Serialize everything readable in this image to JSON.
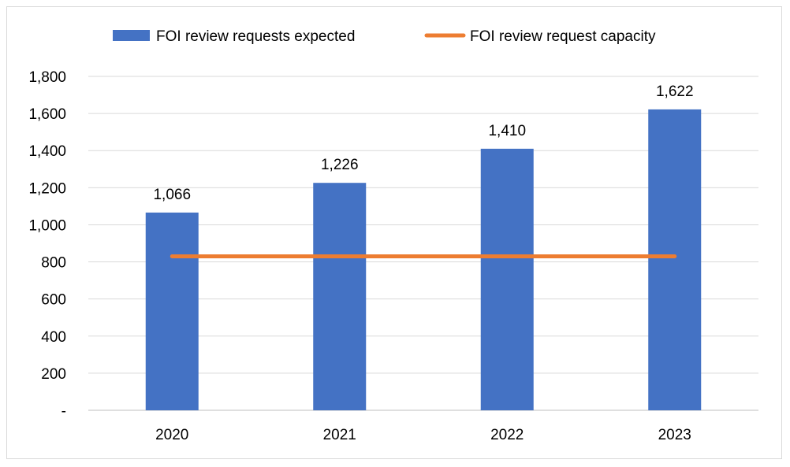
{
  "chart_data": {
    "type": "bar",
    "categories": [
      "2020",
      "2021",
      "2022",
      "2023"
    ],
    "series": [
      {
        "name": "FOI review requests expected",
        "kind": "bar",
        "color": "#4472c4",
        "values": [
          1066,
          1226,
          1410,
          1622
        ],
        "data_labels": [
          "1,066",
          "1,226",
          "1,410",
          "1,622"
        ]
      },
      {
        "name": "FOI review request capacity",
        "kind": "line",
        "color": "#ed7d31",
        "values": [
          830,
          830,
          830,
          830
        ]
      }
    ],
    "y_ticks": [
      {
        "value": 0,
        "label": "-"
      },
      {
        "value": 200,
        "label": "200"
      },
      {
        "value": 400,
        "label": "400"
      },
      {
        "value": 600,
        "label": "600"
      },
      {
        "value": 800,
        "label": "800"
      },
      {
        "value": 1000,
        "label": "1,000"
      },
      {
        "value": 1200,
        "label": "1,200"
      },
      {
        "value": 1400,
        "label": "1,400"
      },
      {
        "value": 1600,
        "label": "1,600"
      },
      {
        "value": 1800,
        "label": "1,800"
      }
    ],
    "ylim": [
      0,
      1800
    ],
    "grid": true,
    "legend_position": "top",
    "title": "",
    "xlabel": "",
    "ylabel": ""
  }
}
